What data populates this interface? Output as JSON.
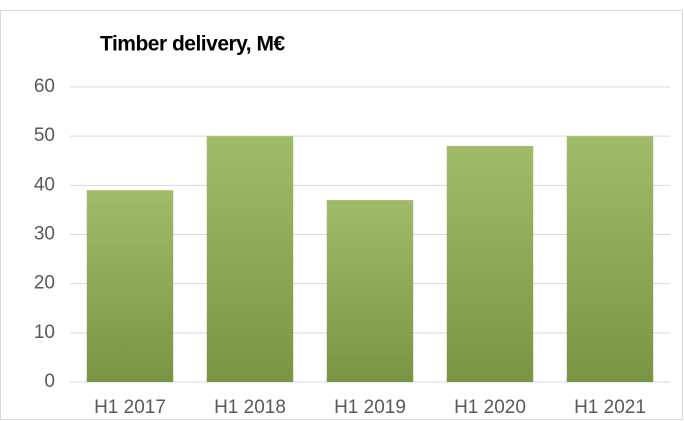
{
  "chart_data": {
    "type": "bar",
    "title": "Timber delivery, M€",
    "categories": [
      "H1 2017",
      "H1 2018",
      "H1 2019",
      "H1 2020",
      "H1 2021"
    ],
    "values": [
      39,
      50,
      37,
      48,
      50
    ],
    "color": "#8fb04f",
    "ylim": [
      0,
      60
    ],
    "yticks": [
      0,
      10,
      20,
      30,
      40,
      50,
      60
    ],
    "grid": true
  }
}
